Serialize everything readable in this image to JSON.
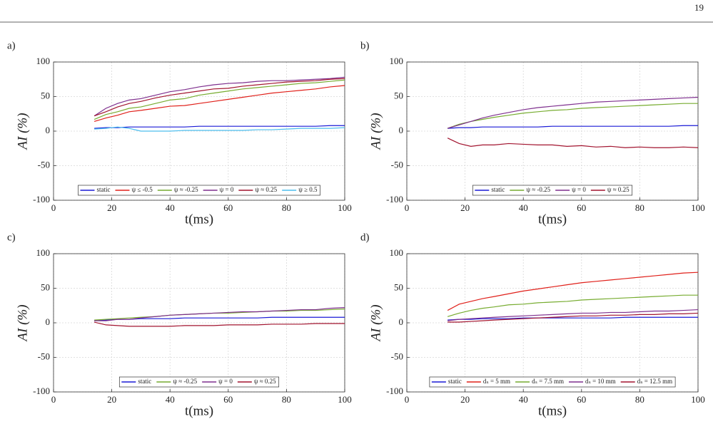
{
  "page_number": "19",
  "chart_data": [
    {
      "type": "line",
      "panel_label": "a)",
      "xlabel": "t(ms)",
      "ylabel": "AI (%)",
      "xlim": [
        0,
        100
      ],
      "xticks": [
        0,
        20,
        40,
        60,
        80,
        100
      ],
      "ylim": [
        -100,
        100
      ],
      "yticks": [
        -100,
        -50,
        0,
        50,
        100
      ],
      "grid": true,
      "x": [
        14,
        18,
        22,
        26,
        30,
        35,
        40,
        45,
        50,
        55,
        60,
        65,
        70,
        75,
        80,
        85,
        90,
        95,
        100
      ],
      "series": [
        {
          "name": "static",
          "color": "#1a1ad6",
          "values": [
            4,
            5,
            5,
            6,
            6,
            6,
            6,
            6,
            7,
            7,
            7,
            7,
            7,
            7,
            7,
            7,
            7,
            8,
            8
          ]
        },
        {
          "name": "ψ ≤ -0.5",
          "color": "#e0201a",
          "values": [
            14,
            19,
            23,
            28,
            30,
            33,
            36,
            37,
            40,
            43,
            46,
            49,
            52,
            55,
            57,
            59,
            61,
            64,
            66
          ]
        },
        {
          "name": "ψ ≈ -0.25",
          "color": "#77ac30",
          "values": [
            17,
            24,
            28,
            33,
            35,
            40,
            45,
            47,
            52,
            55,
            58,
            61,
            63,
            65,
            67,
            69,
            70,
            72,
            74
          ]
        },
        {
          "name": "ψ = 0",
          "color": "#7e2f8e",
          "values": [
            22,
            33,
            40,
            45,
            47,
            52,
            57,
            60,
            64,
            67,
            69,
            70,
            72,
            73,
            73,
            74,
            75,
            76,
            78
          ]
        },
        {
          "name": "ψ ≈ 0.25",
          "color": "#a2142f",
          "values": [
            22,
            28,
            35,
            40,
            43,
            48,
            52,
            55,
            58,
            61,
            62,
            65,
            67,
            69,
            71,
            72,
            73,
            75,
            76
          ]
        },
        {
          "name": "ψ ≥ 0.5",
          "color": "#4dbeee",
          "values": [
            3,
            4,
            6,
            4,
            0,
            0,
            0,
            1,
            1,
            1,
            1,
            1,
            2,
            2,
            3,
            4,
            4,
            4,
            5
          ]
        }
      ]
    },
    {
      "type": "line",
      "panel_label": "b)",
      "xlabel": "t(ms)",
      "ylabel": "AI (%)",
      "xlim": [
        0,
        100
      ],
      "xticks": [
        0,
        20,
        40,
        60,
        80,
        100
      ],
      "ylim": [
        -100,
        100
      ],
      "yticks": [
        -100,
        -50,
        0,
        50,
        100
      ],
      "grid": true,
      "x": [
        14,
        18,
        22,
        26,
        30,
        35,
        40,
        45,
        50,
        55,
        60,
        65,
        70,
        75,
        80,
        85,
        90,
        95,
        100
      ],
      "series": [
        {
          "name": "static",
          "color": "#1a1ad6",
          "values": [
            4,
            5,
            5,
            6,
            6,
            6,
            6,
            6,
            7,
            7,
            7,
            7,
            7,
            7,
            7,
            7,
            7,
            8,
            8
          ]
        },
        {
          "name": "ψ ≈ -0.25",
          "color": "#77ac30",
          "values": [
            4,
            10,
            14,
            17,
            20,
            23,
            26,
            28,
            30,
            31,
            33,
            34,
            35,
            36,
            37,
            38,
            39,
            40,
            40
          ]
        },
        {
          "name": "ψ = 0",
          "color": "#7e2f8e",
          "values": [
            4,
            9,
            14,
            19,
            23,
            27,
            31,
            34,
            36,
            38,
            40,
            42,
            43,
            44,
            45,
            46,
            47,
            48,
            49
          ]
        },
        {
          "name": "ψ ≈ 0.25",
          "color": "#a2142f",
          "values": [
            -10,
            -18,
            -22,
            -20,
            -20,
            -18,
            -19,
            -20,
            -20,
            -22,
            -21,
            -23,
            -22,
            -24,
            -23,
            -24,
            -24,
            -23,
            -24
          ]
        }
      ]
    },
    {
      "type": "line",
      "panel_label": "c)",
      "xlabel": "t(ms)",
      "ylabel": "AI (%)",
      "xlim": [
        0,
        100
      ],
      "xticks": [
        0,
        20,
        40,
        60,
        80,
        100
      ],
      "ylim": [
        -100,
        100
      ],
      "yticks": [
        -100,
        -50,
        0,
        50,
        100
      ],
      "grid": true,
      "x": [
        14,
        18,
        22,
        26,
        30,
        35,
        40,
        45,
        50,
        55,
        60,
        65,
        70,
        75,
        80,
        85,
        90,
        95,
        100
      ],
      "series": [
        {
          "name": "static",
          "color": "#1a1ad6",
          "values": [
            3,
            4,
            5,
            5,
            6,
            6,
            6,
            7,
            7,
            7,
            7,
            7,
            7,
            8,
            8,
            8,
            8,
            8,
            8
          ]
        },
        {
          "name": "ψ ≈ -0.25",
          "color": "#77ac30",
          "values": [
            4,
            5,
            6,
            7,
            8,
            9,
            11,
            12,
            13,
            14,
            14,
            15,
            16,
            17,
            17,
            18,
            18,
            19,
            20
          ]
        },
        {
          "name": "ψ = 0",
          "color": "#7e2f8e",
          "values": [
            3,
            3,
            5,
            5,
            7,
            9,
            11,
            12,
            13,
            14,
            15,
            16,
            16,
            17,
            18,
            19,
            19,
            21,
            22
          ]
        },
        {
          "name": "ψ ≈ 0.25",
          "color": "#a2142f",
          "values": [
            1,
            -3,
            -4,
            -5,
            -5,
            -5,
            -5,
            -4,
            -4,
            -4,
            -3,
            -3,
            -3,
            -2,
            -2,
            -2,
            -1,
            -1,
            -1
          ]
        }
      ]
    },
    {
      "type": "line",
      "panel_label": "d)",
      "xlabel": "t(ms)",
      "ylabel": "AI (%)",
      "xlim": [
        0,
        100
      ],
      "xticks": [
        0,
        20,
        40,
        60,
        80,
        100
      ],
      "ylim": [
        -100,
        100
      ],
      "yticks": [
        -100,
        -50,
        0,
        50,
        100
      ],
      "grid": true,
      "x": [
        14,
        18,
        22,
        26,
        30,
        35,
        40,
        45,
        50,
        55,
        60,
        65,
        70,
        75,
        80,
        85,
        90,
        95,
        100
      ],
      "series": [
        {
          "name": "static",
          "color": "#1a1ad6",
          "values": [
            4,
            5,
            5,
            6,
            6,
            6,
            7,
            7,
            7,
            7,
            7,
            7,
            7,
            8,
            8,
            8,
            8,
            8,
            8
          ]
        },
        {
          "name": "dₛ = 5 mm",
          "color": "#e0201a",
          "values": [
            18,
            27,
            31,
            35,
            38,
            42,
            46,
            49,
            52,
            55,
            58,
            60,
            62,
            64,
            66,
            68,
            70,
            72,
            73
          ]
        },
        {
          "name": "dₛ = 7.5 mm",
          "color": "#77ac30",
          "values": [
            9,
            14,
            18,
            21,
            23,
            26,
            27,
            29,
            30,
            31,
            33,
            34,
            35,
            36,
            37,
            38,
            39,
            40,
            40
          ]
        },
        {
          "name": "dₛ = 10 mm",
          "color": "#7e2f8e",
          "values": [
            3,
            5,
            6,
            7,
            8,
            9,
            10,
            11,
            12,
            13,
            14,
            14,
            15,
            15,
            16,
            17,
            17,
            18,
            19
          ]
        },
        {
          "name": "dₛ = 12.5 mm",
          "color": "#a2142f",
          "values": [
            1,
            1,
            2,
            3,
            4,
            5,
            6,
            7,
            8,
            9,
            10,
            10,
            11,
            11,
            12,
            12,
            13,
            13,
            14
          ]
        }
      ]
    }
  ]
}
